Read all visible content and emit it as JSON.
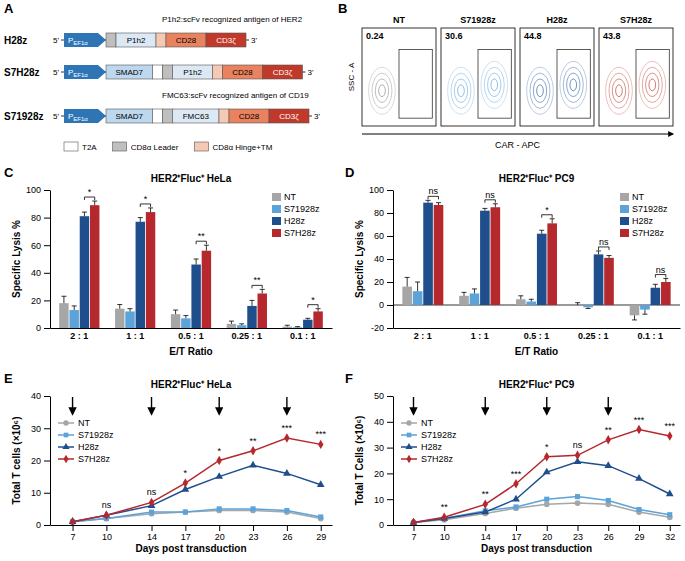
{
  "panel_labels": [
    "A",
    "B",
    "C",
    "D",
    "E",
    "F"
  ],
  "diagram": {
    "five_prime": "5'",
    "three_prime": "3'",
    "promoter": {
      "text": "P",
      "sub": "EF1α",
      "color": "#2e75b6"
    },
    "constructs": [
      {
        "name": "H28z",
        "parts": [
          "CD8α Leader",
          "P1h2",
          "CD8α Hinge+TM",
          "CD28",
          "CD3ζ"
        ]
      },
      {
        "name": "S7H28z",
        "parts": [
          "SMAD7",
          "T2A",
          "CD8α Leader",
          "P1h2",
          "CD8α Hinge+TM",
          "CD28",
          "CD3ζ"
        ]
      },
      {
        "name": "S71928z",
        "parts": [
          "SMAD7",
          "T2A",
          "CD8α Leader",
          "FMC63",
          "CD8α Hinge+TM",
          "CD28",
          "CD3ζ"
        ]
      }
    ],
    "part_colors": {
      "SMAD7": "#bdd7ee",
      "P1h2": "#dce9f5",
      "FMC63": "#dce9f5",
      "CD28": "#e8825f",
      "CD3ζ": "#c0392b"
    },
    "notes": [
      "P1h2:scFv recognized antigen of HER2",
      "FMC63:scFv recognized antigen of CD19"
    ],
    "legend": [
      {
        "label": "T2A",
        "color": "#ffffff"
      },
      {
        "label": "CD8α Leader",
        "color": "#bfbfbf"
      },
      {
        "label": "CD8α Hinge+TM",
        "color": "#f6c9b4"
      }
    ]
  },
  "flow": {
    "y_label": "SSC - A",
    "x_label": "CAR - APC",
    "plots": [
      {
        "name": "NT",
        "percent": 0.24,
        "color": "#8c8c8c"
      },
      {
        "name": "S71928z",
        "percent": 30.6,
        "color": "#5ba3d9"
      },
      {
        "name": "H28z",
        "percent": 44.8,
        "color": "#2e5fa3"
      },
      {
        "name": "S7H28z",
        "percent": 43.8,
        "color": "#c0392b"
      }
    ]
  },
  "chart_data": [
    {
      "type": "bar",
      "title": "HER2⁺Fluc⁺ HeLa",
      "x_label": "E/T Ratio",
      "y_label": "Specific Lysis %",
      "categories": [
        "2 : 1",
        "1 : 1",
        "0.5 : 1",
        "0.25 : 1",
        "0.1 : 1"
      ],
      "series": [
        {
          "name": "NT",
          "color": "#a6a6a6",
          "values": [
            18,
            14,
            10,
            3,
            1
          ],
          "errors": [
            5,
            3,
            3,
            2,
            1
          ]
        },
        {
          "name": "S71928z",
          "color": "#5ba3d9",
          "values": [
            13,
            12,
            7,
            2,
            0.5
          ],
          "errors": [
            3,
            2,
            2,
            1,
            0.5
          ]
        },
        {
          "name": "H28z",
          "color": "#1f4e8c",
          "values": [
            81,
            77,
            46,
            16,
            6
          ],
          "errors": [
            3,
            3,
            4,
            4,
            1
          ]
        },
        {
          "name": "S7H28z",
          "color": "#b5282e",
          "values": [
            89,
            84,
            56,
            25,
            12
          ],
          "errors": [
            3,
            3,
            4,
            3,
            2
          ]
        }
      ],
      "ylim": [
        0,
        100
      ],
      "yticks": [
        0,
        20,
        40,
        60,
        80,
        100
      ],
      "legend": "upper right",
      "annotations": [
        {
          "x": "2 : 1",
          "text": "*"
        },
        {
          "x": "1 : 1",
          "text": "*"
        },
        {
          "x": "0.5 : 1",
          "text": "**"
        },
        {
          "x": "0.25 : 1",
          "text": "**"
        },
        {
          "x": "0.1 : 1",
          "text": "*"
        }
      ]
    },
    {
      "type": "bar",
      "title": "HER2⁺Fluc⁺ PC9",
      "x_label": "E/T Ratio",
      "y_label": "Specific Lysis %",
      "categories": [
        "2 : 1",
        "1 : 1",
        "0.5 : 1",
        "0.25 : 1",
        "0.1 : 1"
      ],
      "series": [
        {
          "name": "NT",
          "color": "#a6a6a6",
          "values": [
            16,
            8,
            5,
            0,
            -9
          ],
          "errors": [
            8,
            3,
            3,
            2,
            4
          ]
        },
        {
          "name": "S71928z",
          "color": "#5ba3d9",
          "values": [
            12,
            10,
            3,
            -2,
            -4
          ],
          "errors": [
            8,
            4,
            2,
            1,
            4
          ]
        },
        {
          "name": "H28z",
          "color": "#1f4e8c",
          "values": [
            89,
            82,
            62,
            44,
            15
          ],
          "errors": [
            2,
            2,
            3,
            3,
            3
          ]
        },
        {
          "name": "S7H28z",
          "color": "#b5282e",
          "values": [
            87,
            85,
            71,
            41,
            20
          ],
          "errors": [
            2,
            3,
            4,
            2,
            3
          ]
        }
      ],
      "ylim": [
        -20,
        100
      ],
      "yticks": [
        -20,
        0,
        20,
        40,
        60,
        80,
        100
      ],
      "legend": "upper right",
      "annotations": [
        {
          "x": "2 : 1",
          "text": "ns"
        },
        {
          "x": "1 : 1",
          "text": "ns"
        },
        {
          "x": "0.5 : 1",
          "text": "*"
        },
        {
          "x": "0.25 : 1",
          "text": "ns"
        },
        {
          "x": "0.1 : 1",
          "text": "ns"
        }
      ]
    },
    {
      "type": "line",
      "title": "HER2⁺Fluc⁺ HeLa",
      "x_label": "Days post transduction",
      "y_label": "Total T cells (×10⁶)",
      "x": [
        7,
        10,
        14,
        17,
        20,
        23,
        26,
        29
      ],
      "series": [
        {
          "name": "NT",
          "color": "#a6a6a6",
          "marker": "circle",
          "values": [
            1,
            2,
            3.5,
            4,
            4.5,
            4.5,
            4,
            2
          ]
        },
        {
          "name": "S71928z",
          "color": "#5ba3d9",
          "marker": "square",
          "values": [
            1,
            2,
            4,
            4,
            5,
            5,
            4.5,
            2.5
          ]
        },
        {
          "name": "H28z",
          "color": "#1f4e8c",
          "marker": "triangle",
          "values": [
            1,
            3,
            6,
            11,
            15,
            18.5,
            16,
            12.5
          ]
        },
        {
          "name": "S7H28z",
          "color": "#b5282e",
          "marker": "diamond",
          "values": [
            1,
            3,
            7,
            13,
            20,
            23,
            27,
            25
          ]
        }
      ],
      "xlim": [
        5,
        30
      ],
      "xticks": [
        7,
        10,
        14,
        17,
        20,
        23,
        26,
        29
      ],
      "ylim": [
        0,
        40
      ],
      "yticks": [
        0,
        10,
        20,
        30,
        40
      ],
      "legend": "upper left",
      "arrows": [
        7,
        14,
        20,
        26
      ],
      "annotations": [
        {
          "x": 10,
          "text": "ns"
        },
        {
          "x": 14,
          "text": "ns"
        },
        {
          "x": 17,
          "text": "*"
        },
        {
          "x": 20,
          "text": "*"
        },
        {
          "x": 23,
          "text": "**"
        },
        {
          "x": 26,
          "text": "***"
        },
        {
          "x": 29,
          "text": "***"
        }
      ]
    },
    {
      "type": "line",
      "title": "HER2⁺Fluc⁺ PC9",
      "x_label": "Days post transduction",
      "y_label": "Total T Cells (×10⁶)",
      "x": [
        7,
        10,
        14,
        17,
        20,
        23,
        26,
        29,
        32
      ],
      "series": [
        {
          "name": "NT",
          "color": "#a6a6a6",
          "marker": "circle",
          "values": [
            1,
            2,
            4.5,
            6.5,
            8,
            8.5,
            8,
            5,
            3
          ]
        },
        {
          "name": "S71928z",
          "color": "#5ba3d9",
          "marker": "square",
          "values": [
            1,
            2.5,
            5.5,
            7,
            10,
            11,
            9.5,
            6,
            4
          ]
        },
        {
          "name": "H28z",
          "color": "#1f4e8c",
          "marker": "triangle",
          "values": [
            1,
            2.5,
            5,
            10,
            20.5,
            24.5,
            23,
            18,
            12
          ]
        },
        {
          "name": "S7H28z",
          "color": "#b5282e",
          "marker": "diamond",
          "values": [
            1,
            3,
            8,
            16,
            26.5,
            27,
            33,
            37,
            34.5
          ]
        }
      ],
      "xlim": [
        5,
        33
      ],
      "xticks": [
        7,
        10,
        14,
        17,
        20,
        23,
        26,
        29,
        32
      ],
      "ylim": [
        0,
        50
      ],
      "yticks": [
        0,
        10,
        20,
        30,
        40,
        50
      ],
      "legend": "upper left",
      "arrows": [
        7,
        14,
        20,
        26
      ],
      "annotations": [
        {
          "x": 10,
          "text": "**"
        },
        {
          "x": 14,
          "text": "**"
        },
        {
          "x": 17,
          "text": "***"
        },
        {
          "x": 20,
          "text": "*"
        },
        {
          "x": 23,
          "text": "ns"
        },
        {
          "x": 26,
          "text": "**"
        },
        {
          "x": 29,
          "text": "***"
        },
        {
          "x": 32,
          "text": "***"
        }
      ]
    }
  ]
}
